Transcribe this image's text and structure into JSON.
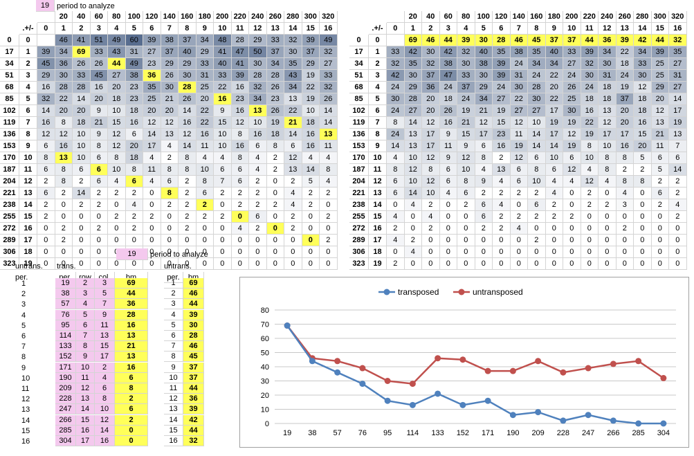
{
  "period_to_analyze": {
    "value": "19",
    "label": "period to analyze"
  },
  "corner_label": ".+/-",
  "col_headers_top": [
    "",
    "20",
    "40",
    "60",
    "80",
    "100",
    "120",
    "140",
    "160",
    "180",
    "200",
    "220",
    "240",
    "260",
    "280",
    "300",
    "320"
  ],
  "col_headers_bottom": [
    "0",
    "1",
    "2",
    "3",
    "4",
    "5",
    "6",
    "7",
    "8",
    "9",
    "10",
    "11",
    "12",
    "13",
    "14",
    "15",
    "16"
  ],
  "row_headers_a": [
    "0",
    "17",
    "34",
    "51",
    "68",
    "85",
    "102",
    "119",
    "136",
    "153",
    "170",
    "187",
    "204",
    "221",
    "238",
    "255",
    "272",
    "289",
    "306",
    "323"
  ],
  "row_headers_b": [
    "0",
    "1",
    "2",
    "3",
    "4",
    "5",
    "6",
    "7",
    "8",
    "9",
    "10",
    "11",
    "12",
    "13",
    "14",
    "15",
    "16",
    "17",
    "18",
    "19"
  ],
  "grid_left": [
    [
      "",
      "46",
      "41",
      "51",
      "49",
      "60",
      "39",
      "38",
      "37",
      "34",
      "48",
      "28",
      "29",
      "33",
      "32",
      "39",
      "49"
    ],
    [
      "39",
      "34",
      "69",
      "33",
      "43",
      "31",
      "27",
      "37",
      "40",
      "29",
      "41",
      "47",
      "50",
      "37",
      "30",
      "37",
      "32"
    ],
    [
      "45",
      "36",
      "26",
      "26",
      "44",
      "49",
      "23",
      "29",
      "29",
      "33",
      "40",
      "41",
      "30",
      "34",
      "35",
      "29",
      "27"
    ],
    [
      "29",
      "30",
      "33",
      "45",
      "27",
      "38",
      "36",
      "26",
      "30",
      "31",
      "33",
      "39",
      "28",
      "28",
      "43",
      "19",
      "33"
    ],
    [
      "16",
      "28",
      "28",
      "16",
      "20",
      "23",
      "35",
      "30",
      "28",
      "25",
      "22",
      "16",
      "32",
      "26",
      "34",
      "22",
      "32"
    ],
    [
      "32",
      "22",
      "14",
      "20",
      "18",
      "23",
      "25",
      "21",
      "26",
      "20",
      "16",
      "23",
      "34",
      "23",
      "13",
      "19",
      "26"
    ],
    [
      "14",
      "20",
      "20",
      "9",
      "10",
      "18",
      "20",
      "20",
      "14",
      "22",
      "9",
      "16",
      "13",
      "26",
      "22",
      "10",
      "14"
    ],
    [
      "16",
      "8",
      "18",
      "21",
      "15",
      "16",
      "12",
      "12",
      "16",
      "22",
      "15",
      "12",
      "10",
      "19",
      "21",
      "18",
      "14"
    ],
    [
      "12",
      "12",
      "10",
      "9",
      "12",
      "6",
      "14",
      "13",
      "12",
      "16",
      "10",
      "8",
      "16",
      "18",
      "14",
      "16",
      "13"
    ],
    [
      "6",
      "16",
      "10",
      "8",
      "12",
      "20",
      "17",
      "4",
      "14",
      "11",
      "10",
      "16",
      "6",
      "8",
      "6",
      "16",
      "11"
    ],
    [
      "8",
      "13",
      "10",
      "6",
      "8",
      "18",
      "4",
      "2",
      "8",
      "4",
      "4",
      "8",
      "4",
      "2",
      "12",
      "4",
      "4"
    ],
    [
      "6",
      "8",
      "6",
      "6",
      "10",
      "8",
      "11",
      "8",
      "8",
      "10",
      "6",
      "6",
      "4",
      "2",
      "13",
      "14",
      "8"
    ],
    [
      "2",
      "8",
      "2",
      "6",
      "4",
      "6",
      "4",
      "6",
      "2",
      "8",
      "7",
      "6",
      "2",
      "0",
      "2",
      "5",
      "4"
    ],
    [
      "6",
      "2",
      "14",
      "2",
      "2",
      "2",
      "0",
      "8",
      "2",
      "6",
      "2",
      "2",
      "2",
      "0",
      "4",
      "2",
      "2"
    ],
    [
      "2",
      "0",
      "2",
      "2",
      "0",
      "4",
      "0",
      "2",
      "2",
      "2",
      "0",
      "2",
      "2",
      "2",
      "4",
      "2",
      "0"
    ],
    [
      "2",
      "0",
      "0",
      "0",
      "2",
      "2",
      "2",
      "0",
      "2",
      "2",
      "2",
      "0",
      "6",
      "0",
      "2",
      "0",
      "2"
    ],
    [
      "0",
      "2",
      "0",
      "2",
      "0",
      "2",
      "0",
      "0",
      "2",
      "0",
      "0",
      "4",
      "2",
      "0",
      "2",
      "0",
      "0"
    ],
    [
      "0",
      "2",
      "0",
      "0",
      "0",
      "0",
      "0",
      "0",
      "0",
      "0",
      "0",
      "0",
      "0",
      "0",
      "0",
      "0",
      "2"
    ],
    [
      "0",
      "0",
      "0",
      "0",
      "0",
      "0",
      "0",
      "0",
      "0",
      "0",
      "0",
      "0",
      "0",
      "0",
      "0",
      "0",
      "0"
    ],
    [
      "0",
      "0",
      "0",
      "0",
      "0",
      "0",
      "0",
      "0",
      "0",
      "0",
      "0",
      "0",
      "0",
      "0",
      "0",
      "0",
      "0"
    ]
  ],
  "grid_right": [
    [
      "",
      "69",
      "46",
      "44",
      "39",
      "30",
      "28",
      "46",
      "45",
      "37",
      "37",
      "44",
      "36",
      "39",
      "42",
      "44",
      "32"
    ],
    [
      "33",
      "42",
      "30",
      "42",
      "32",
      "40",
      "35",
      "38",
      "35",
      "40",
      "33",
      "39",
      "34",
      "22",
      "34",
      "39",
      "35"
    ],
    [
      "32",
      "35",
      "32",
      "38",
      "30",
      "38",
      "39",
      "24",
      "34",
      "34",
      "27",
      "32",
      "30",
      "18",
      "33",
      "25",
      "27"
    ],
    [
      "42",
      "30",
      "37",
      "47",
      "33",
      "30",
      "39",
      "31",
      "24",
      "22",
      "24",
      "30",
      "31",
      "24",
      "30",
      "25",
      "31"
    ],
    [
      "24",
      "29",
      "36",
      "24",
      "37",
      "29",
      "24",
      "30",
      "28",
      "20",
      "26",
      "24",
      "18",
      "19",
      "12",
      "29",
      "27"
    ],
    [
      "30",
      "28",
      "20",
      "18",
      "24",
      "34",
      "27",
      "22",
      "30",
      "22",
      "25",
      "18",
      "18",
      "37",
      "18",
      "20",
      "14"
    ],
    [
      "24",
      "27",
      "20",
      "26",
      "19",
      "21",
      "19",
      "27",
      "27",
      "17",
      "30",
      "16",
      "13",
      "20",
      "18",
      "12",
      "17"
    ],
    [
      "8",
      "14",
      "12",
      "16",
      "21",
      "12",
      "15",
      "12",
      "10",
      "19",
      "19",
      "22",
      "12",
      "20",
      "16",
      "13",
      "19"
    ],
    [
      "24",
      "13",
      "17",
      "9",
      "15",
      "17",
      "23",
      "11",
      "14",
      "17",
      "12",
      "19",
      "17",
      "17",
      "15",
      "21",
      "13"
    ],
    [
      "14",
      "13",
      "17",
      "11",
      "9",
      "6",
      "16",
      "19",
      "14",
      "14",
      "19",
      "8",
      "10",
      "16",
      "20",
      "11",
      "7"
    ],
    [
      "4",
      "10",
      "12",
      "9",
      "12",
      "8",
      "2",
      "12",
      "6",
      "10",
      "6",
      "10",
      "8",
      "8",
      "5",
      "6",
      "6"
    ],
    [
      "8",
      "12",
      "8",
      "6",
      "10",
      "4",
      "13",
      "6",
      "8",
      "6",
      "12",
      "4",
      "8",
      "2",
      "2",
      "5",
      "14"
    ],
    [
      "6",
      "10",
      "12",
      "6",
      "8",
      "9",
      "4",
      "6",
      "10",
      "4",
      "4",
      "12",
      "4",
      "8",
      "8",
      "2",
      "2"
    ],
    [
      "6",
      "14",
      "10",
      "4",
      "6",
      "2",
      "2",
      "2",
      "2",
      "4",
      "0",
      "2",
      "0",
      "4",
      "0",
      "6",
      "2"
    ],
    [
      "0",
      "4",
      "2",
      "0",
      "2",
      "6",
      "4",
      "0",
      "6",
      "2",
      "0",
      "2",
      "2",
      "3",
      "0",
      "2",
      "4"
    ],
    [
      "4",
      "0",
      "4",
      "0",
      "0",
      "6",
      "2",
      "2",
      "2",
      "2",
      "2",
      "0",
      "0",
      "0",
      "0",
      "0",
      "2"
    ],
    [
      "2",
      "0",
      "2",
      "0",
      "0",
      "2",
      "2",
      "4",
      "0",
      "0",
      "0",
      "0",
      "0",
      "2",
      "0",
      "0",
      "0"
    ],
    [
      "4",
      "2",
      "0",
      "0",
      "0",
      "0",
      "0",
      "0",
      "2",
      "0",
      "0",
      "0",
      "0",
      "0",
      "0",
      "0",
      "0"
    ],
    [
      "0",
      "4",
      "0",
      "0",
      "0",
      "0",
      "0",
      "0",
      "0",
      "0",
      "0",
      "0",
      "0",
      "0",
      "0",
      "0",
      "0"
    ],
    [
      "2",
      "0",
      "0",
      "0",
      "0",
      "0",
      "0",
      "0",
      "0",
      "0",
      "0",
      "0",
      "0",
      "0",
      "0",
      "0",
      "0"
    ]
  ],
  "highlight_left": [
    [
      1,
      2
    ],
    [
      2,
      4
    ],
    [
      3,
      6
    ],
    [
      4,
      8
    ],
    [
      5,
      10
    ],
    [
      6,
      12
    ],
    [
      7,
      14
    ],
    [
      8,
      16
    ],
    [
      10,
      1
    ],
    [
      11,
      3
    ],
    [
      12,
      5
    ],
    [
      13,
      7
    ],
    [
      14,
      9
    ],
    [
      15,
      11
    ],
    [
      16,
      13
    ],
    [
      17,
      15
    ]
  ],
  "lower": {
    "untrans_label": "untrans.",
    "trans_label": "trans.",
    "per_label": "per.",
    "headers": [
      "per.",
      "row",
      "col.",
      "bm"
    ],
    "untrans_bm_header": "bm",
    "periods": [
      "1",
      "2",
      "3",
      "4",
      "5",
      "6",
      "7",
      "8",
      "9",
      "10",
      "11",
      "12",
      "13",
      "14",
      "15",
      "16"
    ],
    "trans_rows": [
      [
        "19",
        "2",
        "3",
        "69"
      ],
      [
        "38",
        "3",
        "5",
        "44"
      ],
      [
        "57",
        "4",
        "7",
        "36"
      ],
      [
        "76",
        "5",
        "9",
        "28"
      ],
      [
        "95",
        "6",
        "11",
        "16"
      ],
      [
        "114",
        "7",
        "13",
        "13"
      ],
      [
        "133",
        "8",
        "15",
        "21"
      ],
      [
        "152",
        "9",
        "17",
        "13"
      ],
      [
        "171",
        "10",
        "2",
        "16"
      ],
      [
        "190",
        "11",
        "4",
        "6"
      ],
      [
        "209",
        "12",
        "6",
        "8"
      ],
      [
        "228",
        "13",
        "8",
        "2"
      ],
      [
        "247",
        "14",
        "10",
        "6"
      ],
      [
        "266",
        "15",
        "12",
        "2"
      ],
      [
        "285",
        "16",
        "14",
        "0"
      ],
      [
        "304",
        "17",
        "16",
        "0"
      ]
    ],
    "untrans_rows": [
      [
        "1",
        "69"
      ],
      [
        "2",
        "46"
      ],
      [
        "3",
        "44"
      ],
      [
        "4",
        "39"
      ],
      [
        "5",
        "30"
      ],
      [
        "6",
        "28"
      ],
      [
        "7",
        "46"
      ],
      [
        "8",
        "45"
      ],
      [
        "9",
        "37"
      ],
      [
        "10",
        "37"
      ],
      [
        "11",
        "44"
      ],
      [
        "12",
        "36"
      ],
      [
        "13",
        "39"
      ],
      [
        "14",
        "42"
      ],
      [
        "15",
        "44"
      ],
      [
        "16",
        "32"
      ]
    ]
  },
  "chart_data": {
    "type": "line",
    "categories": [
      "19",
      "38",
      "57",
      "76",
      "95",
      "114",
      "133",
      "152",
      "171",
      "190",
      "209",
      "228",
      "247",
      "266",
      "285",
      "304"
    ],
    "series": [
      {
        "name": "transposed",
        "color": "#4f81bd",
        "values": [
          69,
          44,
          36,
          28,
          16,
          13,
          21,
          13,
          16,
          6,
          8,
          2,
          6,
          2,
          0,
          0
        ]
      },
      {
        "name": "untransposed",
        "color": "#c0504d",
        "values": [
          69,
          46,
          44,
          39,
          30,
          28,
          46,
          45,
          37,
          37,
          44,
          36,
          39,
          42,
          44,
          32
        ]
      }
    ],
    "ylim": [
      0,
      80
    ],
    "yticks": [
      "0",
      "10",
      "20",
      "30",
      "40",
      "50",
      "60",
      "70",
      "80"
    ],
    "grid": true,
    "legend": "top"
  }
}
